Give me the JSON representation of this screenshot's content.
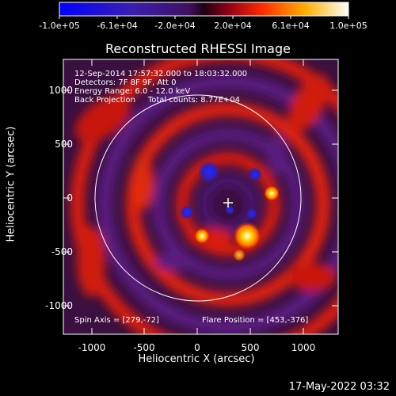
{
  "colorbar": {
    "tick_labels": [
      "-1.0e+05",
      "-6.1e+04",
      "-2.0e+04",
      "2.0e+04",
      "6.1e+04",
      "1.0e+05"
    ]
  },
  "plot": {
    "title": "Reconstructed RHESSI Image",
    "info_lines": [
      "12-Sep-2014 17:57:32.000 to 18:03:32.000",
      "Detectors: 7F 8F 9F, Att 0",
      "Energy Range: 6.0 - 12.0 keV",
      "Back Projection     Total counts: 8.77E+04"
    ],
    "spin_axis": "Spin Axis = [279,-72]",
    "flare_position": "Flare Position = [453,-376]",
    "x_axis": {
      "label": "Heliocentric X (arcsec)",
      "ticks": [
        "-1000",
        "-500",
        "0",
        "500",
        "1000"
      ]
    },
    "y_axis": {
      "label": "Heliocentric Y (arcsec)",
      "ticks": [
        "1000",
        "500",
        "0",
        "-500",
        "-1000"
      ]
    }
  },
  "footer": {
    "timestamp": "17-May-2022 03:32"
  }
}
